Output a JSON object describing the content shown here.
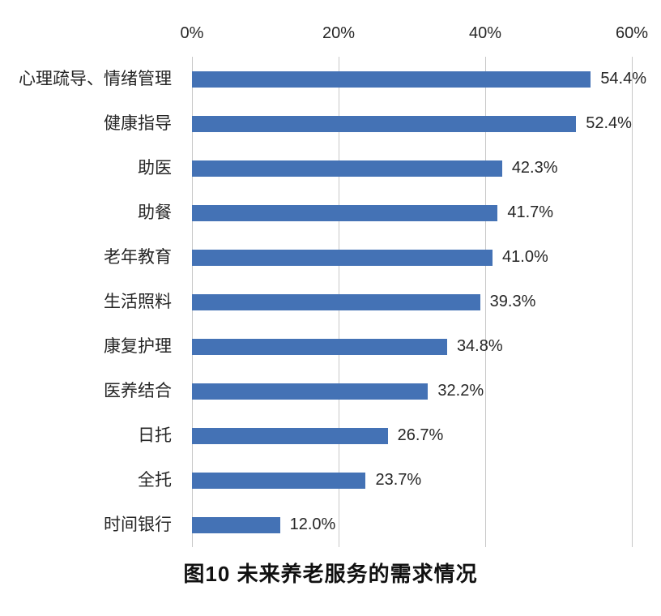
{
  "chart_data": {
    "type": "bar",
    "orientation": "horizontal",
    "title": "图10 未来养老服务的需求情况",
    "categories": [
      "心理疏导、情绪管理",
      "健康指导",
      "助医",
      "助餐",
      "老年教育",
      "生活照料",
      "康复护理",
      "医养结合",
      "日托",
      "全托",
      "时间银行"
    ],
    "values": [
      54.4,
      52.4,
      42.3,
      41.7,
      41.0,
      39.3,
      34.8,
      32.2,
      26.7,
      23.7,
      12.0
    ],
    "value_labels": [
      "54.4%",
      "52.4%",
      "42.3%",
      "41.7%",
      "41.0%",
      "39.3%",
      "34.8%",
      "32.2%",
      "26.7%",
      "23.7%",
      "12.0%"
    ],
    "x_ticks": [
      {
        "value": 0,
        "label": "0%"
      },
      {
        "value": 20,
        "label": "20%"
      },
      {
        "value": 40,
        "label": "40%"
      },
      {
        "value": 60,
        "label": "60%"
      }
    ],
    "xlim": [
      0,
      60
    ],
    "axis_position": "top",
    "grid": "vertical",
    "legend": "none",
    "bar_color": "#4472B5",
    "gridline_color": "#C8C8C8",
    "label_color": "#262626",
    "title_color": "#111111",
    "background_color": "#FFFFFF"
  }
}
